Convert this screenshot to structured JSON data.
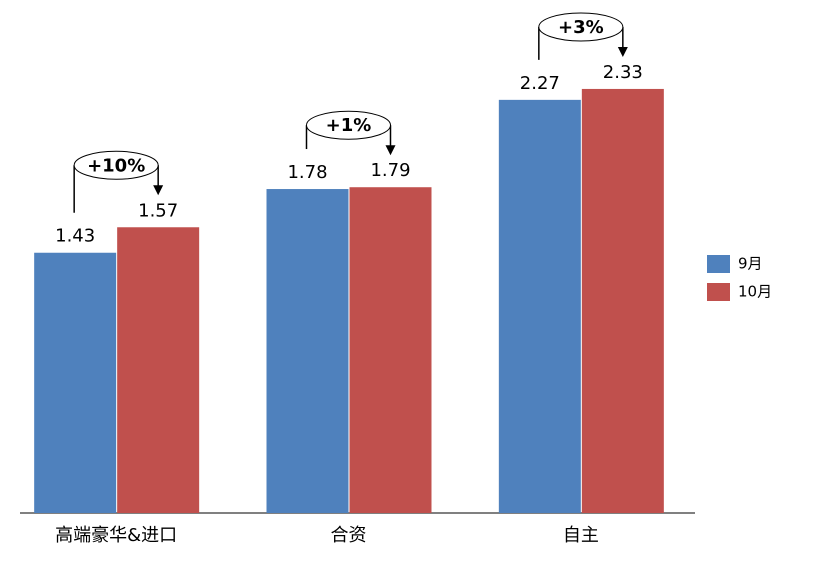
{
  "chart_data": {
    "type": "bar",
    "categories": [
      "高端豪华&进口",
      "合资",
      "自主"
    ],
    "series": [
      {
        "name": "9月",
        "color": "#4f81bd",
        "values": [
          1.43,
          1.78,
          2.27
        ]
      },
      {
        "name": "10月",
        "color": "#c0504d",
        "values": [
          1.57,
          1.79,
          2.33
        ]
      }
    ],
    "annotations": [
      "+10%",
      "+1%",
      "+3%"
    ],
    "ylim": [
      0,
      2.5
    ]
  }
}
